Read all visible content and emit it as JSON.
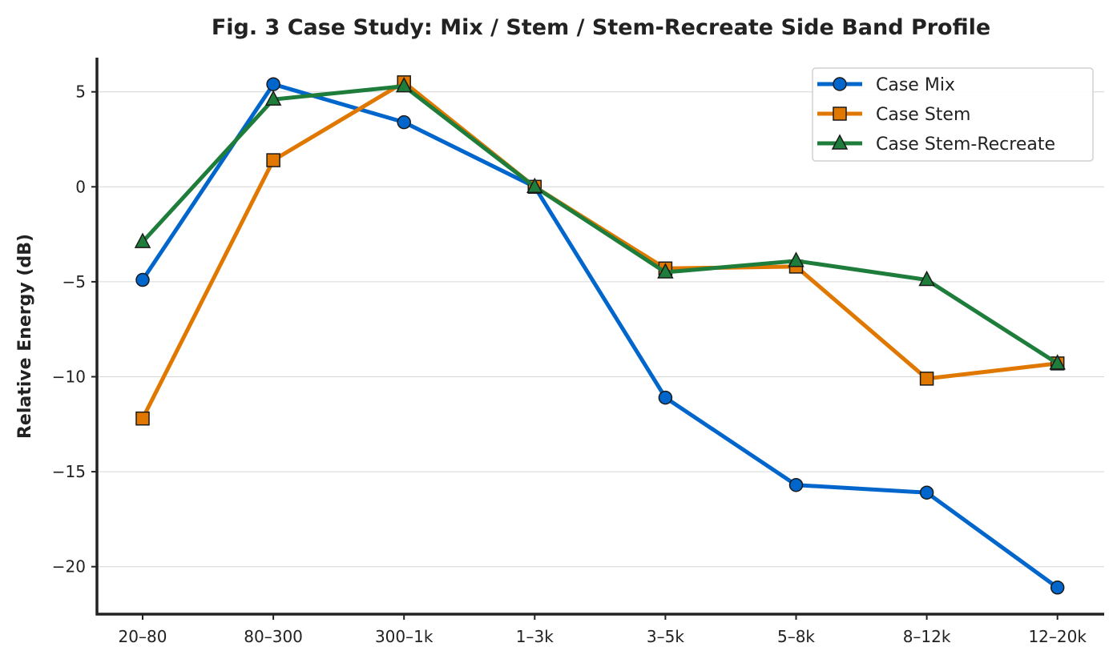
{
  "chart_data": {
    "type": "line",
    "title": "Fig. 3  Case Study: Mix / Stem / Stem-Recreate Side Band Profile",
    "xlabel": "",
    "ylabel": "Relative Energy (dB)",
    "categories": [
      "20–80",
      "80–300",
      "300–1k",
      "1–3k",
      "3–5k",
      "5–8k",
      "8–12k",
      "12–20k"
    ],
    "ylim": [
      -22.5,
      6.8
    ],
    "yticks": [
      5,
      0,
      -5,
      -10,
      -15,
      -20
    ],
    "ytick_labels": [
      "5",
      "0",
      "−5",
      "−10",
      "−15",
      "−20"
    ],
    "grid": "horizontal",
    "legend_position": "top-right",
    "series": [
      {
        "name": "Case Mix",
        "color": "#0066cc",
        "marker": "circle",
        "values": [
          -4.9,
          5.4,
          3.4,
          0,
          -11.1,
          -15.7,
          -16.1,
          -21.1
        ]
      },
      {
        "name": "Case Stem",
        "color": "#e07800",
        "marker": "square",
        "values": [
          -12.2,
          1.4,
          5.5,
          0,
          -4.3,
          -4.2,
          -10.1,
          -9.3
        ]
      },
      {
        "name": "Case Stem-Recreate",
        "color": "#1e7d3a",
        "marker": "triangle",
        "values": [
          -2.9,
          4.6,
          5.3,
          0,
          -4.5,
          -3.9,
          -4.9,
          -9.3
        ]
      }
    ]
  }
}
